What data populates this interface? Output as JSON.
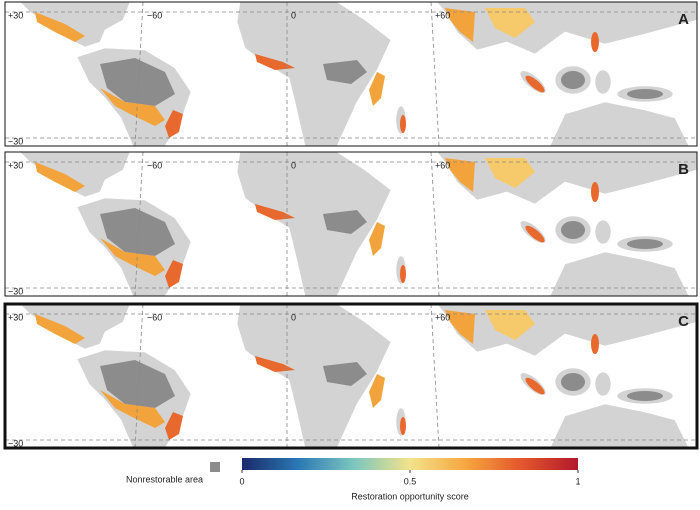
{
  "panels": [
    {
      "label": "A"
    },
    {
      "label": "B"
    },
    {
      "label": "C"
    }
  ],
  "grid_labels": {
    "lat": [
      "+30",
      "−30"
    ],
    "lon": [
      "−60",
      "0",
      "+60"
    ]
  },
  "legend": {
    "nonrestorable": "Nonrestorable area",
    "nonrestorable_color": "#8c8c8c"
  },
  "colorbar": {
    "title": "Restoration opportunity score",
    "range": [
      0,
      1
    ],
    "ticks": [
      0,
      0.5,
      1
    ],
    "colors": [
      "#1b2a6b",
      "#2b78b4",
      "#7cc6bf",
      "#f3e38a",
      "#f6a53f",
      "#e3562c",
      "#b3182b"
    ]
  }
}
